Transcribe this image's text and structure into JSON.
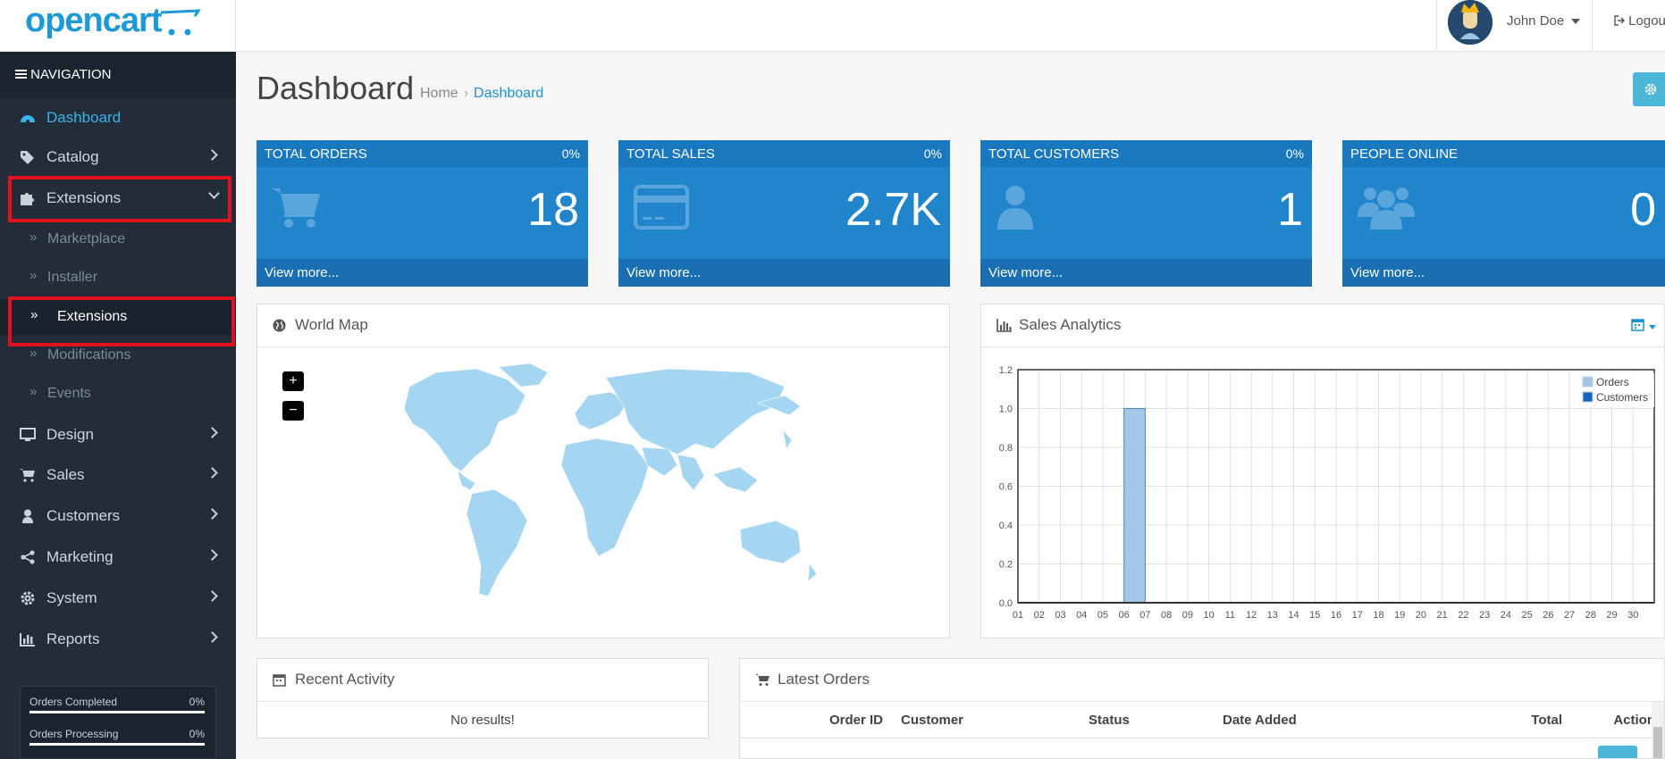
{
  "header": {
    "logo": "opencart",
    "user_name": "John Doe",
    "logout_label": "Logout"
  },
  "sidebar": {
    "nav_title": "NAVIGATION",
    "items": [
      {
        "label": "Dashboard"
      },
      {
        "label": "Catalog"
      },
      {
        "label": "Extensions"
      },
      {
        "label": "Design"
      },
      {
        "label": "Sales"
      },
      {
        "label": "Customers"
      },
      {
        "label": "Marketing"
      },
      {
        "label": "System"
      },
      {
        "label": "Reports"
      }
    ],
    "extensions_sub": [
      {
        "label": "Marketplace"
      },
      {
        "label": "Installer"
      },
      {
        "label": "Extensions"
      },
      {
        "label": "Modifications"
      },
      {
        "label": "Events"
      }
    ],
    "stats": [
      {
        "label": "Orders Completed",
        "value": "0%"
      },
      {
        "label": "Orders Processing",
        "value": "0%"
      }
    ]
  },
  "page": {
    "title": "Dashboard",
    "breadcrumb": [
      "Home",
      "Dashboard"
    ]
  },
  "tiles": [
    {
      "title": "TOTAL ORDERS",
      "percent": "0%",
      "value": "18",
      "link": "View more..."
    },
    {
      "title": "TOTAL SALES",
      "percent": "0%",
      "value": "2.7K",
      "link": "View more..."
    },
    {
      "title": "TOTAL CUSTOMERS",
      "percent": "0%",
      "value": "1",
      "link": "View more..."
    },
    {
      "title": "PEOPLE ONLINE",
      "percent": "",
      "value": "0",
      "link": "View more..."
    }
  ],
  "world_map": {
    "title": "World Map",
    "zoom_in": "+",
    "zoom_out": "−"
  },
  "sales_analytics": {
    "title": "Sales Analytics"
  },
  "recent_activity": {
    "title": "Recent Activity",
    "empty": "No results!"
  },
  "latest_orders": {
    "title": "Latest Orders",
    "columns": [
      "Order ID",
      "Customer",
      "Status",
      "Date Added",
      "Total",
      "Action"
    ]
  },
  "chart_data": {
    "type": "bar",
    "categories": [
      "01",
      "02",
      "03",
      "04",
      "05",
      "06",
      "07",
      "08",
      "09",
      "10",
      "11",
      "12",
      "13",
      "14",
      "15",
      "16",
      "17",
      "18",
      "19",
      "20",
      "21",
      "22",
      "23",
      "24",
      "25",
      "26",
      "27",
      "28",
      "29",
      "30"
    ],
    "series": [
      {
        "name": "Orders",
        "values": [
          0,
          0,
          0,
          0,
          0,
          1,
          0,
          0,
          0,
          0,
          0,
          0,
          0,
          0,
          0,
          0,
          0,
          0,
          0,
          0,
          0,
          0,
          0,
          0,
          0,
          0,
          0,
          0,
          0,
          0
        ],
        "color": "#9fc5e8"
      },
      {
        "name": "Customers",
        "values": [
          0,
          0,
          0,
          0,
          0,
          0,
          0,
          0,
          0,
          0,
          0,
          0,
          0,
          0,
          0,
          0,
          0,
          0,
          0,
          0,
          0,
          0,
          0,
          0,
          0,
          0,
          0,
          0,
          0,
          0
        ],
        "color": "#1065c0"
      }
    ],
    "yticks": [
      "0.0",
      "0.2",
      "0.4",
      "0.6",
      "0.8",
      "1.0",
      "1.2"
    ],
    "ylim": [
      0,
      1.2
    ],
    "grid": true,
    "legend": "top-right"
  }
}
